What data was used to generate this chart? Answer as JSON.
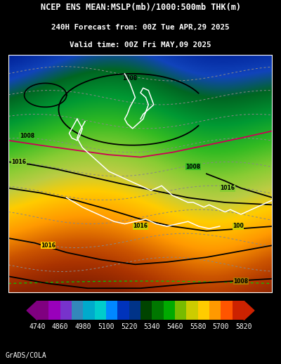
{
  "title_line1": "NCEP ENS MEAN:MSLP(mb)/1000:500mb THK(m)",
  "title_line2": "240H Forecast from: 00Z Tue APR,29 2025",
  "title_line3": "Valid time: 00Z Fri MAY,09 2025",
  "background_color": "#000000",
  "footer_text": "GrADS/COLA",
  "colorbar_values": [
    "4740",
    "4860",
    "4980",
    "5100",
    "5220",
    "5340",
    "5460",
    "5580",
    "5700",
    "5820"
  ],
  "colorbar_colors": [
    "#800080",
    "#9900bb",
    "#7733cc",
    "#3388bb",
    "#00aacc",
    "#00cccc",
    "#0088ff",
    "#0033bb",
    "#003388",
    "#004400",
    "#007700",
    "#00aa00",
    "#77bb00",
    "#cccc00",
    "#ffcc00",
    "#ff9900",
    "#ff5500",
    "#cc2200"
  ],
  "title_color": "#ffffff",
  "title_fontsize": 8.5,
  "subtitle_fontsize": 7.8,
  "color_stops": [
    [
      0.0,
      "#002299"
    ],
    [
      0.1,
      "#1144bb"
    ],
    [
      0.18,
      "#006622"
    ],
    [
      0.28,
      "#009933"
    ],
    [
      0.38,
      "#33bb22"
    ],
    [
      0.48,
      "#88cc33"
    ],
    [
      0.56,
      "#bbcc44"
    ],
    [
      0.64,
      "#ffcc00"
    ],
    [
      0.74,
      "#ff9900"
    ],
    [
      0.84,
      "#cc5500"
    ],
    [
      0.92,
      "#aa3300"
    ],
    [
      1.0,
      "#882200"
    ]
  ]
}
